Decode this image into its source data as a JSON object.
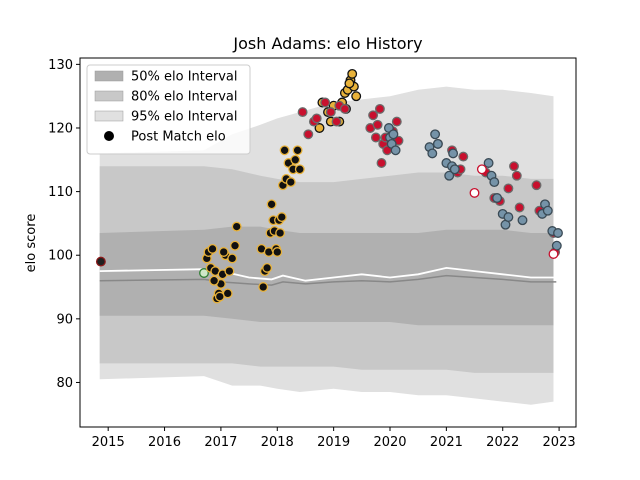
{
  "chart_data": {
    "type": "scatter",
    "title": "Josh Adams: elo History",
    "xlabel": "",
    "ylabel": "elo score",
    "xlim": [
      2014.5,
      2023.3
    ],
    "ylim": [
      73,
      131
    ],
    "x_ticks": [
      2015,
      2016,
      2017,
      2018,
      2019,
      2020,
      2021,
      2022,
      2023
    ],
    "y_ticks": [
      80,
      90,
      100,
      110,
      120,
      130
    ],
    "grid": false,
    "legend": {
      "placement": "top-left",
      "entries": [
        {
          "label": "50% elo Interval",
          "color": "#b0b0b0"
        },
        {
          "label": "80% elo Interval",
          "color": "#c8c8c8"
        },
        {
          "label": "95% elo Interval",
          "color": "#e0e0e0"
        },
        {
          "label": "Post Match elo",
          "color": "#000000"
        }
      ]
    },
    "bands": {
      "x": [
        2014.85,
        2016.7,
        2017.2,
        2017.7,
        2018.0,
        2018.4,
        2019.0,
        2019.5,
        2020.0,
        2020.5,
        2021.0,
        2021.5,
        2022.0,
        2022.5,
        2022.9
      ],
      "b95_low": [
        80.5,
        81,
        79.5,
        79.5,
        79,
        78.5,
        79,
        78.5,
        78.5,
        78,
        78,
        77.5,
        77,
        76.5,
        77
      ],
      "b95_high": [
        116,
        116.5,
        119,
        120.5,
        121.5,
        122.5,
        124,
        124.5,
        125,
        126,
        126.5,
        126,
        126,
        125.5,
        125
      ],
      "b80_low": [
        83,
        83,
        83,
        82.5,
        82.5,
        82.5,
        82.5,
        82,
        82,
        82,
        82,
        81.5,
        81.5,
        81.5,
        81.5
      ],
      "b80_high": [
        114,
        114,
        113.5,
        112.5,
        112,
        111.5,
        111.5,
        112,
        112.5,
        113,
        113,
        112.5,
        112.5,
        112,
        112
      ],
      "b50_low": [
        90.5,
        90.5,
        90,
        89.5,
        89.5,
        89.5,
        89.5,
        89.5,
        89.5,
        89,
        89,
        89,
        89,
        89,
        89
      ],
      "b50_high": [
        103.5,
        104,
        104.5,
        104.5,
        104,
        103.5,
        103.5,
        103.5,
        103.5,
        103.5,
        104,
        104,
        104,
        103.5,
        103.5
      ]
    },
    "mean_line": {
      "color": "#ffffff",
      "x": [
        2014.85,
        2016.7,
        2017.0,
        2017.5,
        2017.9,
        2018.1,
        2018.5,
        2019.0,
        2019.5,
        2020.0,
        2020.5,
        2021.0,
        2021.5,
        2022.0,
        2022.5,
        2022.95
      ],
      "y": [
        97.5,
        97.8,
        97.5,
        96.5,
        96.2,
        96.8,
        96.0,
        96.5,
        97.0,
        96.5,
        97.0,
        98.0,
        97.5,
        97.0,
        96.5,
        96.5
      ]
    },
    "median_line": {
      "color": "#888888",
      "x": [
        2014.85,
        2016.7,
        2017.0,
        2017.5,
        2017.9,
        2018.1,
        2018.5,
        2019.0,
        2019.5,
        2020.0,
        2020.5,
        2021.0,
        2021.5,
        2022.0,
        2022.5,
        2022.95
      ],
      "y": [
        96.0,
        96.2,
        95.8,
        95.5,
        95.3,
        95.8,
        95.5,
        95.8,
        96.0,
        95.8,
        96.2,
        96.8,
        96.5,
        96.2,
        95.8,
        95.8
      ]
    },
    "series": [
      {
        "fill": "#1f1f1f",
        "edge": "#8b1a1a",
        "x": [
          2014.87
        ],
        "y": [
          99.0
        ]
      },
      {
        "fill": "#cfe8c8",
        "edge": "#2e7d32",
        "x": [
          2016.7
        ],
        "y": [
          97.2
        ]
      },
      {
        "fill": "#111111",
        "edge": "#e8b23a",
        "x": [
          2016.75,
          2016.78,
          2016.82,
          2016.85,
          2016.9,
          2016.93,
          2016.96,
          2017.0,
          2017.03,
          2017.08,
          2017.12,
          2017.15,
          2017.2,
          2017.25,
          2017.28,
          2016.88,
          2016.98,
          2017.05,
          2017.72,
          2017.75,
          2017.78,
          2017.82,
          2017.85,
          2017.88,
          2017.9,
          2017.93,
          2017.95,
          2017.98,
          2018.0,
          2018.03,
          2018.05,
          2018.08,
          2018.1,
          2018.13,
          2018.16,
          2018.2,
          2018.24,
          2018.28,
          2018.32,
          2018.36,
          2018.4
        ],
        "y": [
          99.5,
          100.5,
          98.0,
          101.0,
          97.5,
          93.2,
          94.0,
          95.5,
          97.0,
          100.0,
          94.0,
          97.5,
          99.5,
          101.5,
          104.5,
          96.0,
          93.5,
          100.5,
          101.0,
          95.0,
          97.5,
          98.0,
          100.5,
          103.5,
          108.0,
          105.5,
          103.8,
          101.0,
          100.5,
          105.5,
          103.5,
          106.0,
          111.0,
          116.5,
          112.0,
          114.5,
          111.5,
          113.5,
          115.0,
          116.5,
          113.5
        ]
      },
      {
        "fill": "#e8b23a",
        "edge": "#111111",
        "x": [
          2018.75,
          2018.8,
          2018.9,
          2018.95,
          2019.0,
          2019.1,
          2019.15,
          2019.2,
          2019.25,
          2019.3,
          2019.33,
          2019.36,
          2019.4,
          2019.28,
          2019.22
        ],
        "y": [
          120.0,
          124.0,
          122.5,
          121.0,
          123.5,
          121.0,
          124.0,
          125.5,
          126.0,
          127.5,
          128.5,
          126.5,
          125.0,
          127.0,
          123.0
        ]
      },
      {
        "fill": "#c8102e",
        "edge": "#6b6b6b",
        "x": [
          2018.45,
          2018.55,
          2018.65,
          2018.7,
          2018.85,
          2018.95,
          2019.05,
          2019.1,
          2019.2,
          2019.65,
          2019.7,
          2019.75,
          2019.78,
          2019.82,
          2019.85,
          2019.88,
          2019.92,
          2019.95,
          2020.05,
          2020.12,
          2020.15,
          2020.85,
          2021.1,
          2021.2,
          2021.25,
          2021.3,
          2021.7,
          2021.85,
          2021.95,
          2022.1,
          2022.2,
          2022.25,
          2022.3,
          2022.6,
          2022.65,
          2022.9,
          2022.93
        ],
        "y": [
          122.5,
          119.0,
          121.0,
          121.5,
          124.0,
          122.5,
          121.0,
          123.5,
          123.0,
          120.0,
          122.0,
          118.5,
          120.5,
          123.0,
          114.5,
          117.5,
          118.5,
          116.5,
          119.5,
          121.0,
          118.0,
          117.5,
          116.5,
          113.0,
          113.5,
          115.5,
          113.0,
          109.0,
          108.5,
          110.5,
          114.0,
          112.5,
          107.5,
          111.0,
          107.0,
          103.5,
          100.5
        ]
      },
      {
        "fill": "#7593a8",
        "edge": "#3a4a55",
        "x": [
          2019.98,
          2020.0,
          2020.03,
          2020.06,
          2020.1,
          2020.7,
          2020.75,
          2020.8,
          2020.85,
          2021.0,
          2021.05,
          2021.1,
          2021.12,
          2021.15,
          2021.75,
          2021.8,
          2021.85,
          2021.9,
          2022.0,
          2022.05,
          2022.1,
          2022.35,
          2022.7,
          2022.75,
          2022.8,
          2022.88,
          2022.96,
          2022.98
        ],
        "y": [
          120.0,
          118.5,
          117.5,
          119.0,
          116.5,
          117.0,
          116.0,
          119.0,
          117.5,
          114.5,
          112.5,
          114.0,
          116.0,
          113.5,
          114.5,
          112.5,
          111.5,
          109.0,
          106.5,
          104.8,
          106.0,
          105.5,
          106.5,
          108.0,
          107.0,
          103.8,
          101.5,
          103.5
        ]
      },
      {
        "fill": "#ffffff",
        "edge": "#c8102e",
        "x": [
          2021.5,
          2021.63,
          2022.9
        ],
        "y": [
          109.8,
          113.5,
          100.2
        ]
      }
    ]
  }
}
